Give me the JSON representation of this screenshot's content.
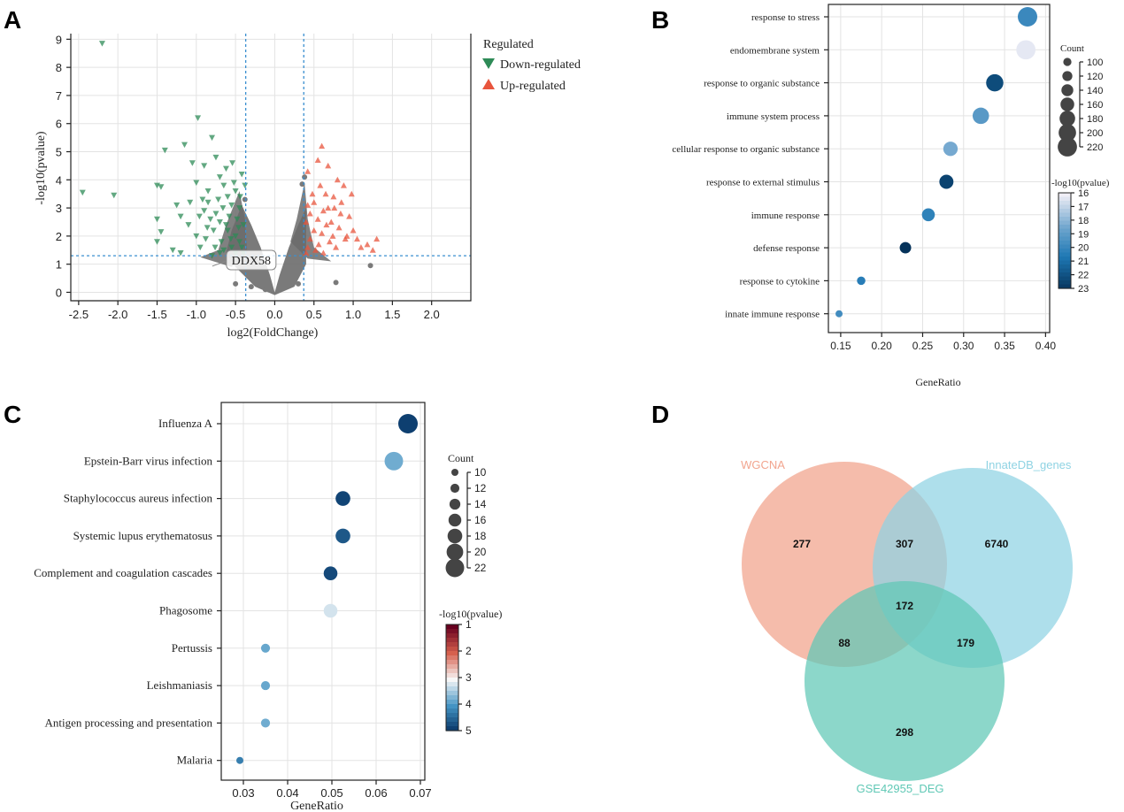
{
  "panels": {
    "a": "A",
    "b": "B",
    "c": "C",
    "d": "D"
  },
  "colors": {
    "down": "#2e8b57",
    "up": "#e8553d",
    "ns": "#666666",
    "wgcna": "#f2a58f",
    "innate": "#8fd3e3",
    "deg": "#5fc8b5"
  },
  "chart_data": [
    {
      "type": "scatter",
      "id": "volcano",
      "xlabel": "log2(FoldChange)",
      "ylabel": "-log10(pvalue)",
      "xlim": [
        -2.6,
        2.5
      ],
      "ylim": [
        -0.3,
        9.2
      ],
      "xticks": [
        -2.5,
        -2.0,
        -1.5,
        -1.0,
        -0.5,
        0.0,
        0.5,
        1.0,
        1.5,
        2.0
      ],
      "yticks": [
        0,
        1,
        2,
        3,
        4,
        5,
        6,
        7,
        8,
        9
      ],
      "thresholds": {
        "logfc": [
          -0.37,
          0.37
        ],
        "pvalue": 1.3
      },
      "legend": {
        "title": "Regulated",
        "down": "Down-regulated",
        "up": "Up-regulated"
      },
      "annotation": {
        "label": "DDX58",
        "x": -0.3,
        "y": 1.18
      },
      "down_points": [
        [
          -2.2,
          8.85
        ],
        [
          -2.45,
          3.55
        ],
        [
          -2.05,
          3.45
        ],
        [
          -1.5,
          3.8
        ],
        [
          -1.45,
          3.75
        ],
        [
          -1.5,
          2.6
        ],
        [
          -1.45,
          2.15
        ],
        [
          -1.5,
          1.8
        ],
        [
          -1.3,
          1.5
        ],
        [
          -1.15,
          5.25
        ],
        [
          -1.4,
          5.05
        ],
        [
          -1.25,
          3.1
        ],
        [
          -1.2,
          2.7
        ],
        [
          -0.98,
          6.2
        ],
        [
          -0.8,
          5.5
        ],
        [
          -1.05,
          4.6
        ],
        [
          -0.9,
          4.5
        ],
        [
          -1.0,
          3.9
        ],
        [
          -0.85,
          3.6
        ],
        [
          -0.9,
          2.9
        ],
        [
          -1.1,
          2.4
        ],
        [
          -1.0,
          2.0
        ],
        [
          -0.95,
          1.6
        ],
        [
          -0.8,
          1.3
        ],
        [
          -0.75,
          4.8
        ],
        [
          -0.7,
          4.1
        ],
        [
          -0.65,
          3.8
        ],
        [
          -0.6,
          3.4
        ],
        [
          -0.55,
          3.1
        ],
        [
          -0.75,
          2.8
        ],
        [
          -0.7,
          2.5
        ],
        [
          -0.6,
          2.2
        ],
        [
          -0.5,
          2.0
        ],
        [
          -0.45,
          1.8
        ],
        [
          -0.55,
          1.6
        ],
        [
          -0.65,
          1.5
        ],
        [
          -0.5,
          1.4
        ],
        [
          -0.42,
          1.6
        ],
        [
          -0.4,
          2.4
        ],
        [
          -0.45,
          3.0
        ],
        [
          -0.5,
          3.6
        ],
        [
          -0.42,
          4.2
        ],
        [
          -0.85,
          3.2
        ],
        [
          -0.78,
          2.2
        ],
        [
          -0.88,
          1.9
        ],
        [
          -0.68,
          1.8
        ],
        [
          -0.58,
          2.7
        ],
        [
          -0.48,
          2.6
        ],
        [
          -0.62,
          4.4
        ],
        [
          -0.52,
          3.9
        ],
        [
          -0.72,
          3.3
        ],
        [
          -0.82,
          2.6
        ],
        [
          -0.92,
          3.3
        ],
        [
          -0.66,
          3.0
        ],
        [
          -0.56,
          1.9
        ],
        [
          -0.46,
          2.3
        ],
        [
          -0.76,
          1.6
        ],
        [
          -0.86,
          2.3
        ],
        [
          -0.96,
          2.7
        ],
        [
          -1.08,
          3.2
        ],
        [
          -0.62,
          2.4
        ],
        [
          -0.44,
          3.4
        ],
        [
          -0.54,
          4.6
        ],
        [
          -0.4,
          1.4
        ],
        [
          -0.38,
          3.8
        ],
        [
          -1.2,
          1.4
        ],
        [
          -0.7,
          1.4
        ]
      ],
      "up_points": [
        [
          0.6,
          5.2
        ],
        [
          0.55,
          4.7
        ],
        [
          0.68,
          4.5
        ],
        [
          0.42,
          4.3
        ],
        [
          0.8,
          4.0
        ],
        [
          0.85,
          3.2
        ],
        [
          0.75,
          3.4
        ],
        [
          0.65,
          3.5
        ],
        [
          0.5,
          3.2
        ],
        [
          0.45,
          2.8
        ],
        [
          0.55,
          2.6
        ],
        [
          0.62,
          2.9
        ],
        [
          0.72,
          2.5
        ],
        [
          0.82,
          2.3
        ],
        [
          0.95,
          2.7
        ],
        [
          1.0,
          2.2
        ],
        [
          1.05,
          1.9
        ],
        [
          1.1,
          1.6
        ],
        [
          1.18,
          1.7
        ],
        [
          1.25,
          1.5
        ],
        [
          1.3,
          1.9
        ],
        [
          0.9,
          1.9
        ],
        [
          0.78,
          1.6
        ],
        [
          0.7,
          1.8
        ],
        [
          0.6,
          2.1
        ],
        [
          0.5,
          2.2
        ],
        [
          0.45,
          1.9
        ],
        [
          0.42,
          1.6
        ],
        [
          0.52,
          1.5
        ],
        [
          0.62,
          1.4
        ],
        [
          0.4,
          2.5
        ],
        [
          0.48,
          3.5
        ],
        [
          0.58,
          3.8
        ],
        [
          0.68,
          3.0
        ],
        [
          0.88,
          3.8
        ],
        [
          0.92,
          2.0
        ],
        [
          0.74,
          2.0
        ],
        [
          0.84,
          2.8
        ],
        [
          0.42,
          3.1
        ],
        [
          0.56,
          1.7
        ],
        [
          0.66,
          2.4
        ],
        [
          0.98,
          3.5
        ],
        [
          0.4,
          1.4
        ],
        [
          0.76,
          3.0
        ]
      ],
      "ns_points": [
        [
          1.22,
          0.95
        ],
        [
          0.78,
          0.35
        ],
        [
          -0.12,
          0.1
        ],
        [
          -0.3,
          0.2
        ],
        [
          -0.5,
          0.3
        ],
        [
          0.3,
          0.3
        ],
        [
          0.38,
          4.1
        ],
        [
          0.35,
          3.85
        ],
        [
          -0.38,
          3.3
        ],
        [
          0.12,
          0.7
        ],
        [
          0.2,
          1.2
        ],
        [
          -0.2,
          1.0
        ]
      ]
    },
    {
      "type": "scatter",
      "id": "go-dotplot",
      "xlabel": "GeneRatio",
      "xlim": [
        0.135,
        0.405
      ],
      "xticks": [
        0.15,
        0.2,
        0.25,
        0.3,
        0.35,
        0.4
      ],
      "categories": [
        "response to stress",
        "endomembrane system",
        "response to organic substance",
        "immune system process",
        "cellular response to organic substance",
        "response to external stimulus",
        "immune response",
        "defense response",
        "response to cytokine",
        "innate immune response"
      ],
      "gene_ratio": [
        0.378,
        0.376,
        0.338,
        0.321,
        0.284,
        0.279,
        0.257,
        0.229,
        0.175,
        0.148
      ],
      "count": [
        222,
        219,
        198,
        189,
        167,
        164,
        151,
        135,
        103,
        88
      ],
      "neglog10p": [
        19.8,
        16.2,
        22.1,
        19.0,
        18.3,
        22.4,
        20.1,
        23.0,
        20.3,
        19.6
      ],
      "size_legend": {
        "title": "Count",
        "values": [
          100,
          120,
          140,
          160,
          180,
          200,
          220
        ]
      },
      "color_legend": {
        "title": "-log10(pvalue)",
        "ticks": [
          16,
          17,
          18,
          19,
          20,
          21,
          22,
          23
        ]
      }
    },
    {
      "type": "scatter",
      "id": "kegg-dotplot",
      "xlabel": "GeneRatio",
      "xlim": [
        0.025,
        0.071
      ],
      "xticks": [
        0.03,
        0.04,
        0.05,
        0.06,
        0.07
      ],
      "categories": [
        "Influenza A",
        "Epstein-Barr virus infection",
        "Staphylococcus aureus infection",
        "Systemic lupus erythematosus",
        "Complement and coagulation cascades",
        "Phagosome",
        "Pertussis",
        "Leishmaniasis",
        "Antigen processing and presentation",
        "Malaria"
      ],
      "gene_ratio": [
        0.0672,
        0.064,
        0.0525,
        0.0525,
        0.0497,
        0.0497,
        0.035,
        0.035,
        0.035,
        0.0292
      ],
      "count": [
        23,
        22,
        18,
        18,
        17,
        17,
        12,
        12,
        12,
        10
      ],
      "neglog10p": [
        4.85,
        3.75,
        4.8,
        4.6,
        4.75,
        3.2,
        3.8,
        3.8,
        3.75,
        4.2
      ],
      "size_legend": {
        "title": "Count",
        "values": [
          10,
          12,
          14,
          16,
          18,
          20,
          22
        ]
      },
      "color_legend": {
        "title": "-log10(pvalue)",
        "ticks": [
          1,
          2,
          3,
          4,
          5
        ]
      }
    }
  ],
  "venn": {
    "sets": [
      "WGCNA",
      "InnateDB_genes",
      "GSE42955_DEG"
    ],
    "regions": {
      "wgcna_only": "277",
      "wgcna_innate": "307",
      "innate_only": "6740",
      "all_three": "172",
      "wgcna_deg": "88",
      "innate_deg": "179",
      "deg_only": "298"
    }
  }
}
